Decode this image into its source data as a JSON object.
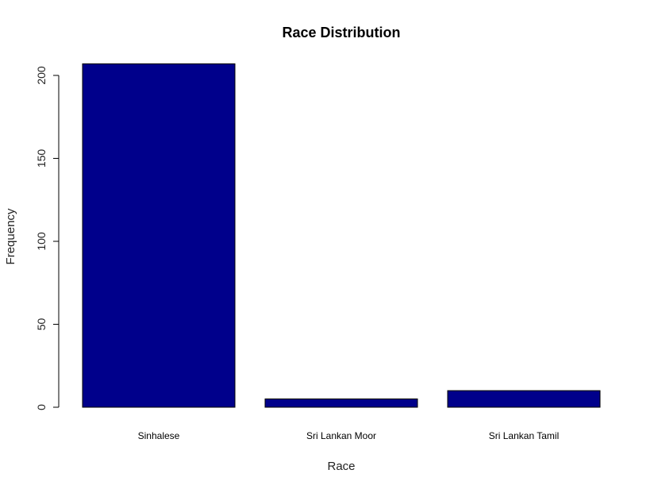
{
  "chart_data": {
    "type": "bar",
    "title": "Race Distribution",
    "xlabel": "Race",
    "ylabel": "Frequency",
    "categories": [
      "Sinhalese",
      "Sri Lankan Moor",
      "Sri Lankan Tamil"
    ],
    "values": [
      207,
      5,
      10
    ],
    "ylim": [
      0,
      200
    ],
    "yticks": [
      0,
      50,
      100,
      150,
      200
    ],
    "grid": false,
    "bar_color": "#00008B"
  }
}
